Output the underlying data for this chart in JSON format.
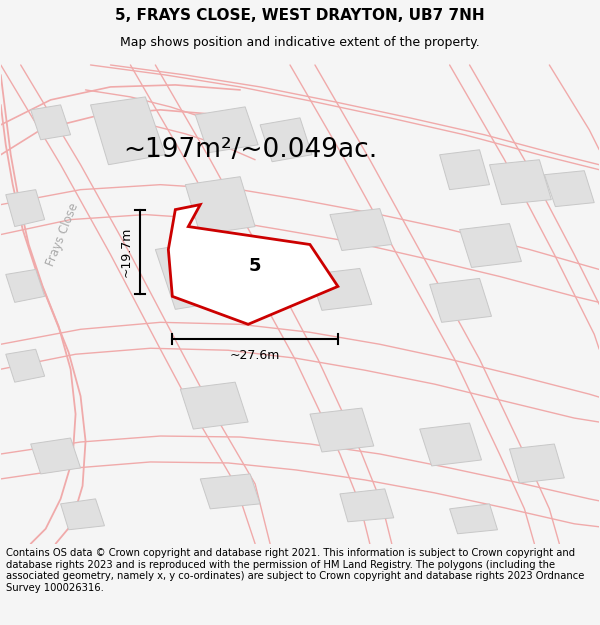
{
  "title": "5, FRAYS CLOSE, WEST DRAYTON, UB7 7NH",
  "subtitle": "Map shows position and indicative extent of the property.",
  "area_text": "~197m²/~0.049ac.",
  "width_label": "~27.6m",
  "height_label": "~19.7m",
  "property_number": "5",
  "street_label": "Frays Close",
  "footer_text": "Contains OS data © Crown copyright and database right 2021. This information is subject to Crown copyright and database rights 2023 and is reproduced with the permission of HM Land Registry. The polygons (including the associated geometry, namely x, y co-ordinates) are subject to Crown copyright and database rights 2023 Ordnance Survey 100026316.",
  "bg_color": "#f5f5f5",
  "map_bg": "#ffffff",
  "plot_edge": "#cc0000",
  "road_line_color": "#f0aaaa",
  "road_outline_color": "#e8c8c8",
  "building_fill": "#e0e0e0",
  "building_edge": "#c8c8c8",
  "dim_line_color": "#111111",
  "title_fontsize": 11,
  "subtitle_fontsize": 9,
  "area_fontsize": 20,
  "footer_fontsize": 7.2,
  "street_label_color": "#aaaaaa"
}
